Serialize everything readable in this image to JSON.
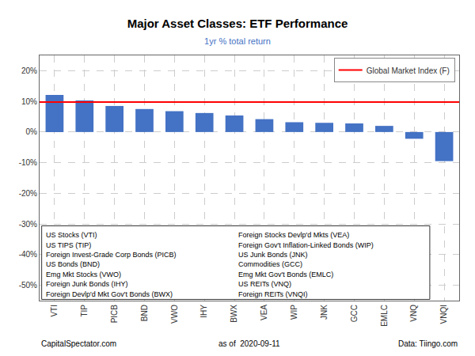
{
  "chart_data": {
    "type": "bar",
    "title": "Major Asset Classes: ETF Performance",
    "subtitle": "1yr % total return",
    "categories": [
      "VTI",
      "TIP",
      "PICB",
      "BND",
      "VWO",
      "IHY",
      "BWX",
      "VEA",
      "WIP",
      "JNK",
      "GCC",
      "EMLC",
      "VNQ",
      "VNQI"
    ],
    "values": [
      12.1,
      10.3,
      8.5,
      7.5,
      6.8,
      6.2,
      5.4,
      4.2,
      3.2,
      3.0,
      2.8,
      2.0,
      -2.2,
      -9.5
    ],
    "color": "#4472c4",
    "reference_line": {
      "name": "Global Market Index (F)",
      "value": 9.8,
      "color": "#ff0000"
    },
    "ylim": [
      -55,
      25
    ],
    "yticks": [
      {
        "value": 20,
        "label": "20%"
      },
      {
        "value": 10,
        "label": "10%"
      },
      {
        "value": 0,
        "label": "0%"
      },
      {
        "value": -10,
        "label": "-10%"
      },
      {
        "value": -20,
        "label": "-20%"
      },
      {
        "value": -30,
        "label": "-30%"
      },
      {
        "value": -40,
        "label": "-40%"
      },
      {
        "value": -50,
        "label": "-50%"
      }
    ],
    "grid": true,
    "legend": "upper right",
    "annotations": [
      [
        "US Stocks (VTI)",
        "US TIPS (TIP)",
        "Foreign Invest-Grade Corp Bonds (PICB)",
        "US Bonds (BND)",
        "Emg Mkt Stocks (VWO)",
        "Foreign Junk Bonds (IHY)",
        "Foreign Devlp'd Mkt Gov't Bonds (BWX)"
      ],
      [
        "Foreign Stocks Devlp'd Mkts (VEA)",
        "Foreign Gov't Inflation-Linked Bonds (WIP)",
        "US Junk Bonds (JNK)",
        "Commodities (GCC)",
        "Emg Mkt Gov't Bonds (EMLC)",
        "US REITs (VNQ)",
        "Foreign REITs (VNQI)"
      ]
    ],
    "footer": [
      "CapitalSpectator.com",
      "as of  2020-09-11",
      "Data: Tiingo.com"
    ]
  }
}
